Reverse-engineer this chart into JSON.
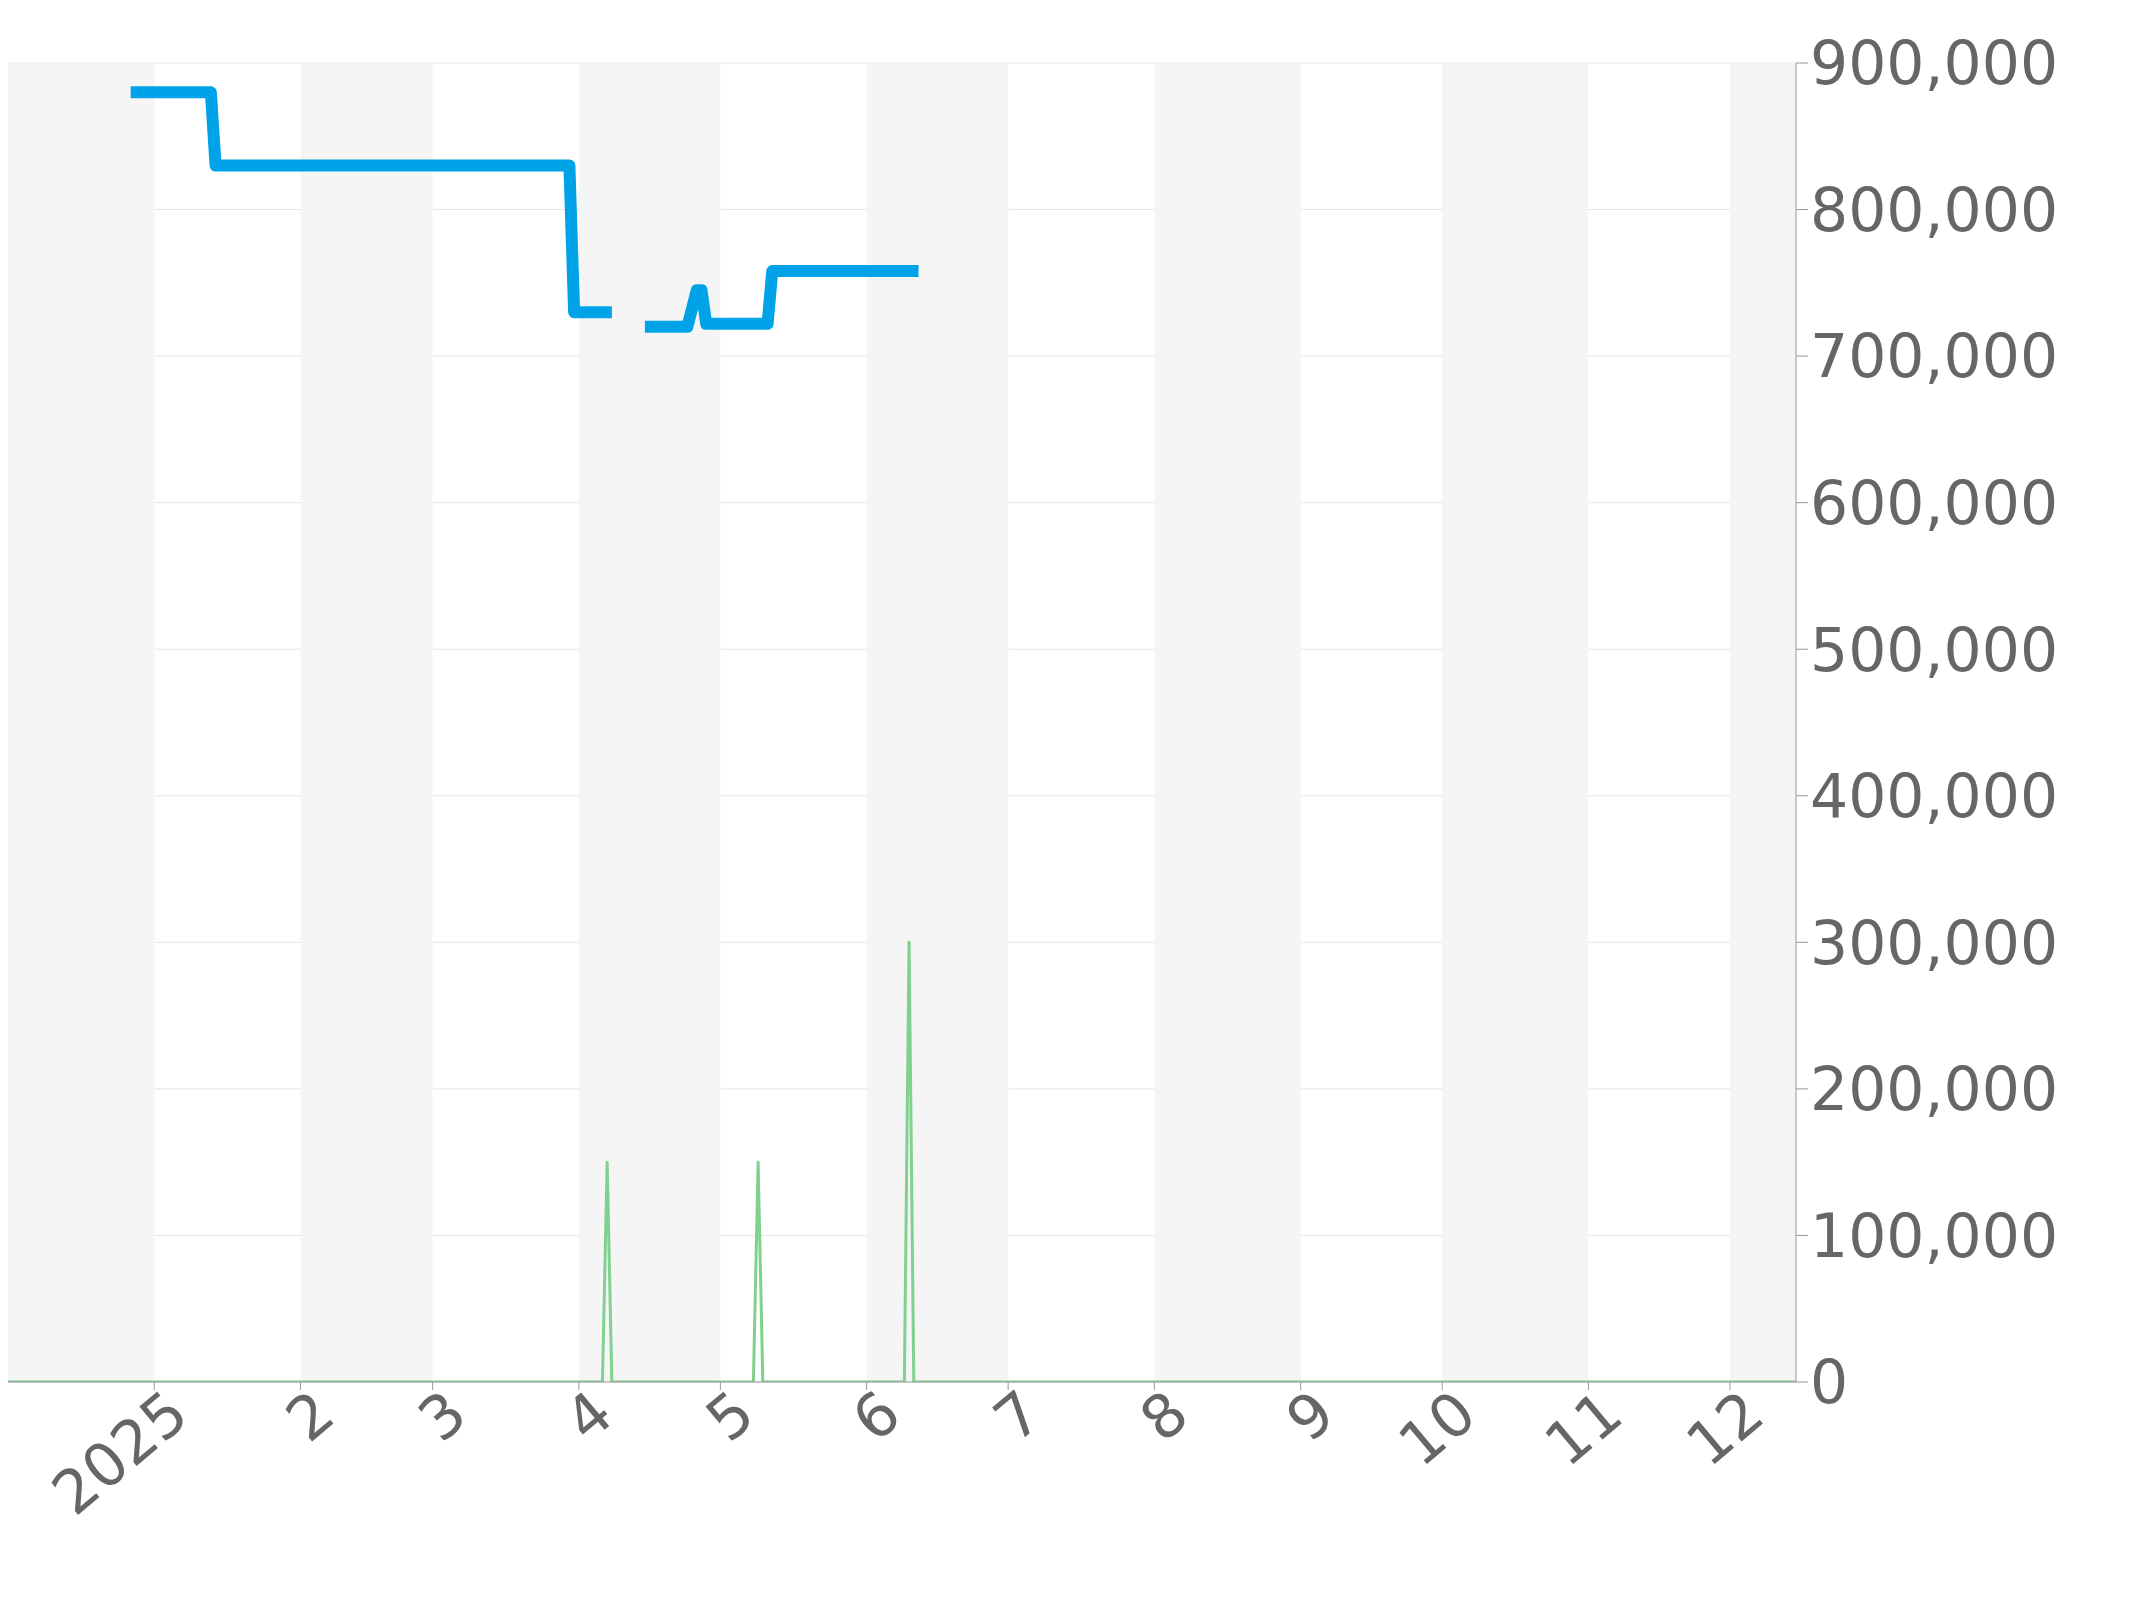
{
  "chart_data": {
    "type": "line",
    "xlim": [
      "2024-12-01",
      "2025-12-15"
    ],
    "xticks": [
      {
        "value": "2025-01-01",
        "label": "2025"
      },
      {
        "value": "2025-02-01",
        "label": "2"
      },
      {
        "value": "2025-03-01",
        "label": "3"
      },
      {
        "value": "2025-04-01",
        "label": "4"
      },
      {
        "value": "2025-05-01",
        "label": "5"
      },
      {
        "value": "2025-06-01",
        "label": "6"
      },
      {
        "value": "2025-07-01",
        "label": "7"
      },
      {
        "value": "2025-08-01",
        "label": "8"
      },
      {
        "value": "2025-09-01",
        "label": "9"
      },
      {
        "value": "2025-10-01",
        "label": "10"
      },
      {
        "value": "2025-11-01",
        "label": "11"
      },
      {
        "value": "2025-12-01",
        "label": "12"
      }
    ],
    "ylim": [
      0,
      900000
    ],
    "yticks": [
      {
        "value": 0,
        "label": "0"
      },
      {
        "value": 100000,
        "label": "100,000"
      },
      {
        "value": 200000,
        "label": "200,000"
      },
      {
        "value": 300000,
        "label": "300,000"
      },
      {
        "value": 400000,
        "label": "400,000"
      },
      {
        "value": 500000,
        "label": "500,000"
      },
      {
        "value": 600000,
        "label": "600,000"
      },
      {
        "value": 700000,
        "label": "700,000"
      },
      {
        "value": 800000,
        "label": "800,000"
      },
      {
        "value": 900000,
        "label": "900,000"
      }
    ],
    "grid": "y",
    "marker": "none",
    "line_style": "solid",
    "bands": [
      {
        "axis": "x",
        "from": "2024-12-01",
        "to": "2025-01-01",
        "color": "#f5f5f5"
      },
      {
        "axis": "x",
        "from": "2025-02-01",
        "to": "2025-03-01",
        "color": "#f5f5f5"
      },
      {
        "axis": "x",
        "from": "2025-04-01",
        "to": "2025-05-01",
        "color": "#f5f5f5"
      },
      {
        "axis": "x",
        "from": "2025-06-01",
        "to": "2025-07-01",
        "color": "#f5f5f5"
      },
      {
        "axis": "x",
        "from": "2025-08-01",
        "to": "2025-09-01",
        "color": "#f5f5f5"
      },
      {
        "axis": "x",
        "from": "2025-10-01",
        "to": "2025-11-01",
        "color": "#f5f5f5"
      },
      {
        "axis": "x",
        "from": "2025-12-01",
        "to": "2025-12-15",
        "color": "#f5f5f5"
      }
    ],
    "series": [
      {
        "color": "#00a3e8",
        "x": [
          "2024-12-27",
          "2025-01-13",
          "2025-01-14",
          "2025-03-30",
          "2025-03-31",
          "2025-04-08",
          "2025-04-11",
          "2025-04-15",
          "2025-04-24",
          "2025-04-26",
          "2025-04-27",
          "2025-04-28",
          "2025-05-11",
          "2025-05-12",
          "2025-06-12"
        ],
        "values": [
          880000,
          880000,
          830000,
          830000,
          730000,
          730000,
          null,
          720000,
          720000,
          745000,
          745000,
          722000,
          722000,
          758000,
          758000
        ]
      },
      {
        "color": "#80d090",
        "x": [
          "2024-12-01",
          "2025-04-06",
          "2025-04-07",
          "2025-04-08",
          "2025-05-08",
          "2025-05-09",
          "2025-05-10",
          "2025-06-09",
          "2025-06-10",
          "2025-06-11",
          "2025-12-15"
        ],
        "values": [
          0,
          0,
          150000,
          0,
          0,
          150000,
          0,
          0,
          300000,
          0,
          0
        ]
      }
    ]
  }
}
